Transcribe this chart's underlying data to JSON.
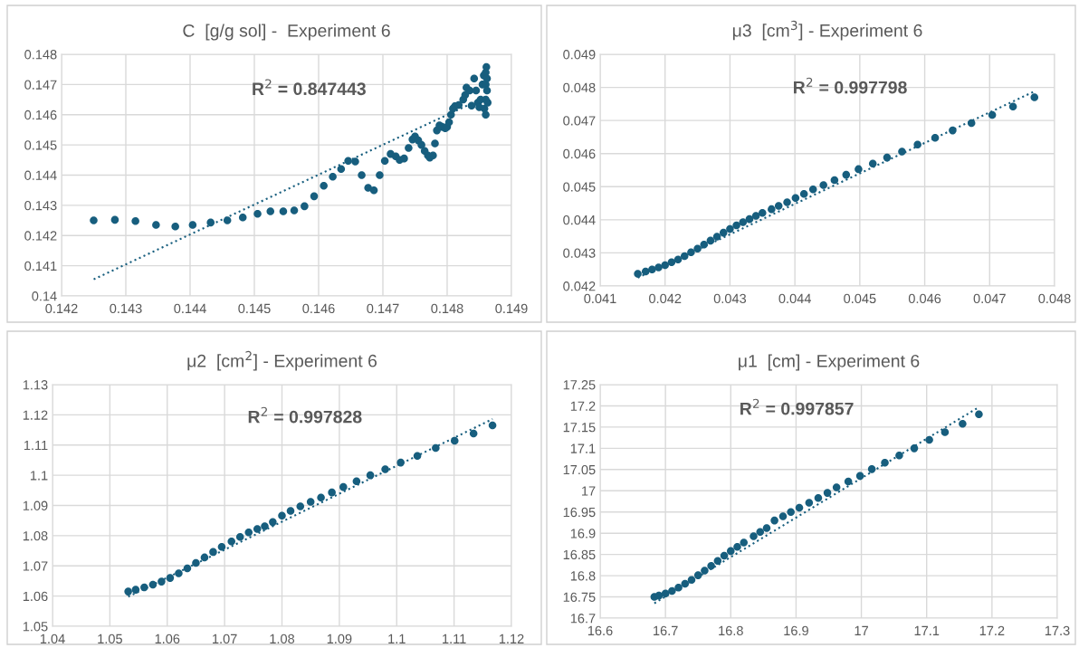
{
  "chart_data": [
    {
      "type": "scatter",
      "title": "C  [g/g sol] -  Experiment 6",
      "annotations": [
        "R$^{2}$ = 0.847443"
      ],
      "grid": true,
      "marker": "circle",
      "xlim": [
        0.142,
        0.149
      ],
      "xticks": [
        0.142,
        0.143,
        0.144,
        0.145,
        0.146,
        0.147,
        0.148,
        0.149
      ],
      "ylim": [
        0.14,
        0.148
      ],
      "yticks": [
        0.14,
        0.141,
        0.142,
        0.143,
        0.144,
        0.145,
        0.146,
        0.147,
        0.148
      ],
      "series": [
        {
          "color": "#175e7e",
          "x": [
            0.1425,
            0.14283,
            0.14315,
            0.14347,
            0.14377,
            0.14404,
            0.14432,
            0.14458,
            0.14482,
            0.14505,
            0.14525,
            0.14545,
            0.14562,
            0.14578,
            0.14593,
            0.14608,
            0.14622,
            0.14635,
            0.14646,
            0.14657,
            0.14667,
            0.14677,
            0.14686,
            0.14695,
            0.14703,
            0.14712,
            0.1472,
            0.14726,
            0.14733,
            0.1474,
            0.14746,
            0.1475,
            0.14755,
            0.1476,
            0.14765,
            0.1477,
            0.14773,
            0.14778,
            0.14781,
            0.14784,
            0.14788,
            0.14792,
            0.14797,
            0.148,
            0.14803,
            0.14806,
            0.14809,
            0.14812,
            0.14818,
            0.14825,
            0.14828,
            0.1483,
            0.14835,
            0.14838,
            0.14842,
            0.14845,
            0.14848,
            0.1485,
            0.14852,
            0.14855,
            0.14857,
            0.14858,
            0.1486,
            0.1486,
            0.1486,
            0.1486,
            0.14861,
            0.14862,
            0.14862,
            0.14863
          ],
          "values": [
            0.1425,
            0.14252,
            0.14248,
            0.14235,
            0.1423,
            0.14235,
            0.14243,
            0.1425,
            0.1426,
            0.14272,
            0.1428,
            0.1428,
            0.14283,
            0.14297,
            0.1433,
            0.14365,
            0.14395,
            0.1442,
            0.14447,
            0.14445,
            0.144,
            0.14358,
            0.1435,
            0.144,
            0.14447,
            0.1447,
            0.14462,
            0.1445,
            0.14455,
            0.1449,
            0.14518,
            0.14528,
            0.14515,
            0.145,
            0.1448,
            0.14465,
            0.14458,
            0.14465,
            0.14505,
            0.14548,
            0.14565,
            0.1456,
            0.14555,
            0.1456,
            0.14575,
            0.146,
            0.1462,
            0.14628,
            0.14632,
            0.1465,
            0.14665,
            0.1469,
            0.1468,
            0.1463,
            0.1472,
            0.1468,
            0.1464,
            0.14625,
            0.1465,
            0.147,
            0.1473,
            0.1462,
            0.146,
            0.1465,
            0.147,
            0.1474,
            0.14758,
            0.1472,
            0.1468,
            0.1464
          ]
        },
        {
          "type": "line",
          "marker": "none",
          "line_style": "dotted",
          "color": "#175e7e",
          "x": [
            0.1425,
            0.14863
          ],
          "values": [
            0.14055,
            0.14662
          ]
        }
      ]
    },
    {
      "type": "scatter",
      "title": "μ3  [cm$^{3}$] - Experiment 6",
      "annotations": [
        "R$^{2}$ = 0.997798"
      ],
      "grid": true,
      "marker": "circle",
      "xlim": [
        0.041,
        0.048
      ],
      "xticks": [
        0.041,
        0.042,
        0.043,
        0.044,
        0.045,
        0.046,
        0.047,
        0.048
      ],
      "ylim": [
        0.042,
        0.049
      ],
      "yticks": [
        0.042,
        0.043,
        0.044,
        0.045,
        0.046,
        0.047,
        0.048,
        0.049
      ],
      "series": [
        {
          "color": "#175e7e",
          "x": [
            0.04158,
            0.0417,
            0.0418,
            0.0419,
            0.042,
            0.0421,
            0.0422,
            0.0423,
            0.0424,
            0.0425,
            0.0426,
            0.0427,
            0.0428,
            0.0429,
            0.043,
            0.0431,
            0.0432,
            0.0433,
            0.0434,
            0.0435,
            0.04364,
            0.04375,
            0.04388,
            0.04401,
            0.04414,
            0.04428,
            0.04444,
            0.04461,
            0.04479,
            0.04498,
            0.0452,
            0.04542,
            0.04565,
            0.04589,
            0.04616,
            0.04643,
            0.04672,
            0.04704,
            0.04736,
            0.04769
          ],
          "values": [
            0.04237,
            0.04244,
            0.0425,
            0.04256,
            0.04263,
            0.04272,
            0.0428,
            0.0429,
            0.04302,
            0.04313,
            0.04325,
            0.04337,
            0.04349,
            0.04361,
            0.04372,
            0.04383,
            0.04393,
            0.04402,
            0.04412,
            0.04421,
            0.04432,
            0.04442,
            0.04453,
            0.04466,
            0.04478,
            0.04492,
            0.04505,
            0.0452,
            0.04536,
            0.04553,
            0.0457,
            0.04588,
            0.04606,
            0.04627,
            0.04648,
            0.0467,
            0.04692,
            0.04717,
            0.04742,
            0.0477
          ]
        },
        {
          "type": "line",
          "marker": "none",
          "line_style": "dotted",
          "color": "#175e7e",
          "x": [
            0.04158,
            0.04769
          ],
          "values": [
            0.04225,
            0.04788
          ]
        }
      ]
    },
    {
      "type": "scatter",
      "title": "μ2  [cm$^{2}$] - Experiment 6",
      "annotations": [
        "R$^{2}$ = 0.997828"
      ],
      "grid": true,
      "marker": "circle",
      "xlim": [
        1.04,
        1.12
      ],
      "xticks": [
        1.04,
        1.05,
        1.06,
        1.07,
        1.08,
        1.09,
        1.1,
        1.11,
        1.12
      ],
      "ylim": [
        1.05,
        1.13
      ],
      "yticks": [
        1.05,
        1.06,
        1.07,
        1.08,
        1.09,
        1.1,
        1.11,
        1.12,
        1.13
      ],
      "series": [
        {
          "color": "#175e7e",
          "x": [
            1.0532,
            1.0545,
            1.056,
            1.0575,
            1.059,
            1.0605,
            1.062,
            1.0635,
            1.065,
            1.0665,
            1.068,
            1.0695,
            1.0712,
            1.0727,
            1.0742,
            1.0757,
            1.077,
            1.0784,
            1.08,
            1.0815,
            1.0832,
            1.085,
            1.0868,
            1.0887,
            1.0907,
            1.093,
            1.0954,
            1.098,
            1.1007,
            1.1036,
            1.1068,
            1.1101,
            1.1134,
            1.1167
          ],
          "values": [
            1.0615,
            1.0621,
            1.0629,
            1.0638,
            1.0648,
            1.066,
            1.0675,
            1.0692,
            1.071,
            1.0728,
            1.0746,
            1.0763,
            1.0781,
            1.0796,
            1.0811,
            1.0822,
            1.0831,
            1.0845,
            1.0866,
            1.0882,
            1.0897,
            1.0912,
            1.0926,
            1.0943,
            1.0961,
            1.098,
            1.1,
            1.102,
            1.1042,
            1.1064,
            1.109,
            1.1114,
            1.1138,
            1.1165
          ]
        },
        {
          "type": "line",
          "marker": "none",
          "line_style": "dotted",
          "color": "#175e7e",
          "x": [
            1.0532,
            1.1167
          ],
          "values": [
            1.0598,
            1.1186
          ]
        }
      ]
    },
    {
      "type": "scatter",
      "title": "μ1  [cm] - Experiment 6",
      "annotations": [
        "R$^{2}$ = 0.997857"
      ],
      "grid": true,
      "marker": "circle",
      "xlim": [
        16.6,
        17.3
      ],
      "xticks": [
        16.6,
        16.7,
        16.8,
        16.9,
        17,
        17.1,
        17.2,
        17.3
      ],
      "ylim": [
        16.7,
        17.25
      ],
      "yticks": [
        16.7,
        16.75,
        16.8,
        16.85,
        16.9,
        16.95,
        17,
        17.05,
        17.1,
        17.15,
        17.2,
        17.25
      ],
      "series": [
        {
          "color": "#175e7e",
          "x": [
            16.683,
            16.69,
            16.7,
            16.71,
            16.72,
            16.73,
            16.74,
            16.75,
            16.76,
            16.77,
            16.78,
            16.79,
            16.8,
            16.81,
            16.82,
            16.835,
            16.845,
            16.855,
            16.867,
            16.88,
            16.892,
            16.905,
            16.92,
            16.934,
            16.948,
            16.962,
            16.98,
            16.998,
            17.016,
            17.036,
            17.058,
            17.081,
            17.104,
            17.128,
            17.155,
            17.18
          ],
          "values": [
            16.75,
            16.753,
            16.758,
            16.764,
            16.772,
            16.781,
            16.79,
            16.801,
            16.812,
            16.823,
            16.835,
            16.847,
            16.858,
            16.868,
            16.878,
            16.893,
            16.903,
            16.912,
            16.93,
            16.94,
            16.95,
            16.96,
            16.972,
            16.983,
            16.995,
            17.008,
            17.022,
            17.035,
            17.051,
            17.066,
            17.083,
            17.1,
            17.12,
            17.138,
            17.158,
            17.18
          ]
        },
        {
          "type": "line",
          "marker": "none",
          "line_style": "dotted",
          "color": "#175e7e",
          "x": [
            16.683,
            17.18
          ],
          "values": [
            16.735,
            17.197
          ]
        }
      ]
    }
  ]
}
